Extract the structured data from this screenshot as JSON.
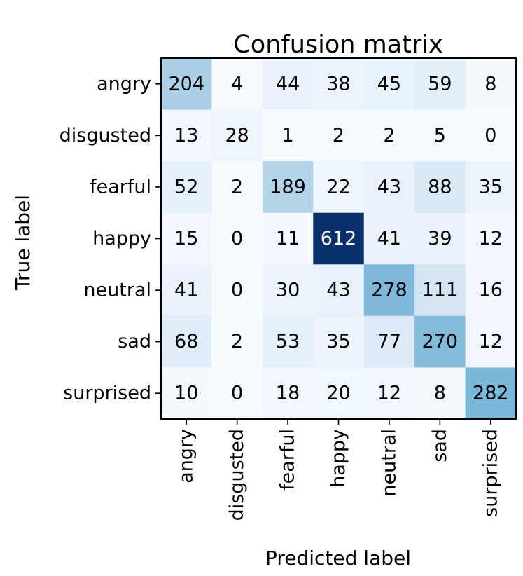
{
  "chart_data": {
    "type": "heatmap",
    "title": "Confusion matrix",
    "xlabel": "Predicted label",
    "ylabel": "True label",
    "x_categories": [
      "angry",
      "disgusted",
      "fearful",
      "happy",
      "neutral",
      "sad",
      "surprised"
    ],
    "y_categories": [
      "angry",
      "disgusted",
      "fearful",
      "happy",
      "neutral",
      "sad",
      "surprised"
    ],
    "values": [
      [
        204,
        4,
        44,
        38,
        45,
        59,
        8
      ],
      [
        13,
        28,
        1,
        2,
        2,
        5,
        0
      ],
      [
        52,
        2,
        189,
        22,
        43,
        88,
        35
      ],
      [
        15,
        0,
        11,
        612,
        41,
        39,
        12
      ],
      [
        41,
        0,
        30,
        43,
        278,
        111,
        16
      ],
      [
        68,
        2,
        53,
        35,
        77,
        270,
        12
      ],
      [
        10,
        0,
        18,
        20,
        12,
        8,
        282
      ]
    ],
    "colormap": "Blues",
    "colorbar": false,
    "grid": false
  }
}
